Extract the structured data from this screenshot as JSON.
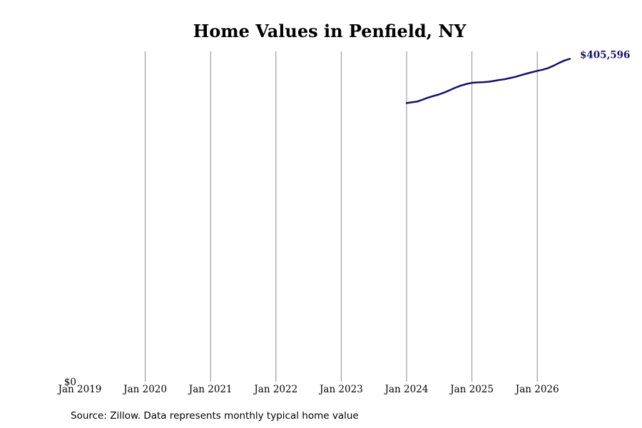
{
  "chart_data": {
    "type": "line",
    "title": "Home Values in Penfield, NY",
    "xlabel": "",
    "ylabel": "",
    "x_ticks": [
      "Jan 2019",
      "Jan 2020",
      "Jan 2021",
      "Jan 2022",
      "Jan 2023",
      "Jan 2024",
      "Jan 2025",
      "Jan 2026"
    ],
    "y_ticks": [
      {
        "label": "$0",
        "value": 0
      }
    ],
    "ylim": [
      0,
      415000
    ],
    "xlim": [
      "2019-01",
      "2026-07"
    ],
    "grid": {
      "vertical": true,
      "horizontal": false
    },
    "series": [
      {
        "color": "#12126b",
        "points": [
          {
            "x": "2024-01",
            "y": 350000
          },
          {
            "x": "2024-02",
            "y": 351000
          },
          {
            "x": "2024-03",
            "y": 352000
          },
          {
            "x": "2024-04",
            "y": 354500
          },
          {
            "x": "2024-05",
            "y": 357000
          },
          {
            "x": "2024-06",
            "y": 359000
          },
          {
            "x": "2024-07",
            "y": 361000
          },
          {
            "x": "2024-08",
            "y": 363500
          },
          {
            "x": "2024-09",
            "y": 366500
          },
          {
            "x": "2024-10",
            "y": 369500
          },
          {
            "x": "2024-11",
            "y": 372000
          },
          {
            "x": "2024-12",
            "y": 374000
          },
          {
            "x": "2025-01",
            "y": 375500
          },
          {
            "x": "2025-02",
            "y": 376000
          },
          {
            "x": "2025-03",
            "y": 376200
          },
          {
            "x": "2025-04",
            "y": 376800
          },
          {
            "x": "2025-05",
            "y": 377800
          },
          {
            "x": "2025-06",
            "y": 379000
          },
          {
            "x": "2025-07",
            "y": 380000
          },
          {
            "x": "2025-08",
            "y": 381500
          },
          {
            "x": "2025-09",
            "y": 383000
          },
          {
            "x": "2025-10",
            "y": 385000
          },
          {
            "x": "2025-11",
            "y": 387000
          },
          {
            "x": "2025-12",
            "y": 388800
          },
          {
            "x": "2026-01",
            "y": 390500
          },
          {
            "x": "2026-02",
            "y": 392000
          },
          {
            "x": "2026-03",
            "y": 394000
          },
          {
            "x": "2026-04",
            "y": 397000
          },
          {
            "x": "2026-05",
            "y": 400500
          },
          {
            "x": "2026-06",
            "y": 403500
          },
          {
            "x": "2026-07",
            "y": 405596
          }
        ]
      }
    ],
    "end_label": "$405,596",
    "source_note": "Source: Zillow. Data represents monthly typical home value"
  }
}
